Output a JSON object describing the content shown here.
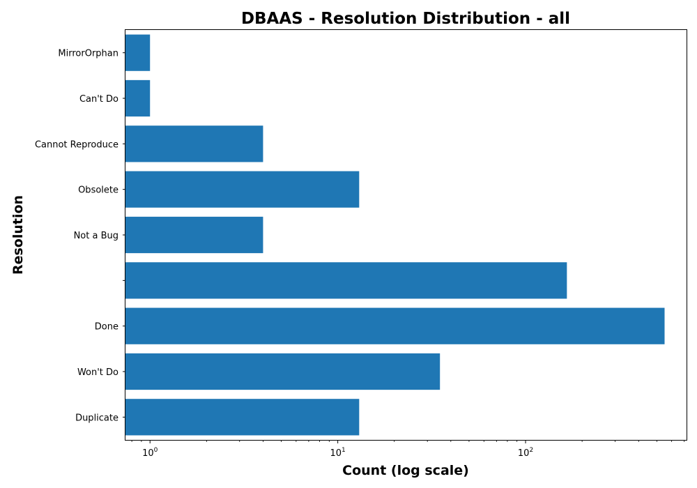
{
  "chart_data": {
    "type": "bar",
    "orientation": "horizontal",
    "title": "DBAAS - Resolution Distribution - all",
    "xlabel": "Count (log scale)",
    "ylabel": "Resolution",
    "xscale": "log",
    "xlim": [
      0.74,
      720
    ],
    "x_tick_labels": [
      {
        "base": "10",
        "exp": "0",
        "value": 1
      },
      {
        "base": "10",
        "exp": "1",
        "value": 10
      },
      {
        "base": "10",
        "exp": "2",
        "value": 100
      }
    ],
    "categories": [
      "MirrorOrphan",
      "Can't Do",
      "Cannot Reproduce",
      "Obsolete",
      "Not a Bug",
      "",
      "Done",
      "Won't Do",
      "Duplicate"
    ],
    "values": [
      1,
      1,
      4,
      13,
      4,
      166,
      550,
      35,
      13
    ],
    "bar_color": "#1f77b4",
    "grid": false,
    "legend": "none"
  }
}
